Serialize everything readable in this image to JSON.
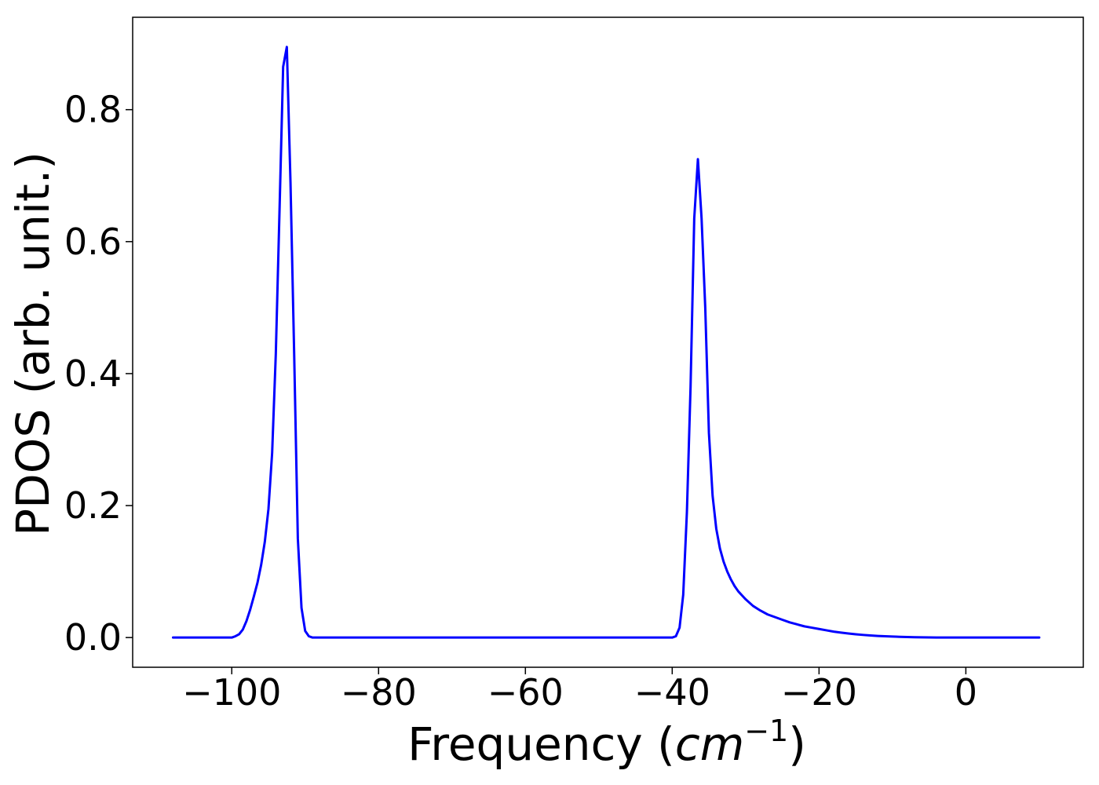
{
  "chart_data": {
    "type": "line",
    "title": "",
    "xlabel": "Frequency (",
    "xlabel_math": "cm",
    "xlabel_sup": "−1",
    "xlabel_close": ")",
    "ylabel": "PDOS (arb. unit.)",
    "xlim": [
      -113.5,
      16
    ],
    "ylim": [
      -0.045,
      0.94
    ],
    "xticks": [
      -100,
      -80,
      -60,
      -40,
      -20,
      0
    ],
    "xtick_labels": [
      "−100",
      "−80",
      "−60",
      "−40",
      "−20",
      "0"
    ],
    "yticks": [
      0.0,
      0.2,
      0.4,
      0.6,
      0.8
    ],
    "ytick_labels": [
      "0.0",
      "0.2",
      "0.4",
      "0.6",
      "0.8"
    ],
    "grid": false,
    "line_color": "#0000ff",
    "series": [
      {
        "x": [
          -108,
          -104,
          -101,
          -100,
          -99.5,
          -99,
          -98.5,
          -98,
          -97.5,
          -97,
          -96.5,
          -96,
          -95.5,
          -95,
          -94.5,
          -94,
          -93.5,
          -93,
          -92.5,
          -92,
          -91.5,
          -91,
          -90.5,
          -90,
          -89.5,
          -89,
          -88.5,
          -88,
          -87,
          -85,
          -80,
          -60,
          -42,
          -40,
          -39.5,
          -39,
          -38.5,
          -38,
          -37.5,
          -37,
          -36.5,
          -36,
          -35.5,
          -35,
          -34.5,
          -34,
          -33.5,
          -33,
          -32.5,
          -32,
          -31.5,
          -31,
          -30.5,
          -30,
          -29,
          -28,
          -27,
          -26,
          -25,
          -24,
          -23,
          -22,
          -21,
          -20,
          -19,
          -18,
          -17,
          -16,
          -15,
          -14,
          -13,
          -12,
          -11,
          -10,
          -9,
          -8,
          -7,
          -6,
          -5,
          -4,
          -3,
          -2,
          -1,
          0,
          2,
          5,
          10
        ],
        "y": [
          0.0,
          0.0,
          0.0,
          0.0,
          0.002,
          0.005,
          0.012,
          0.025,
          0.042,
          0.062,
          0.083,
          0.11,
          0.145,
          0.195,
          0.28,
          0.43,
          0.645,
          0.865,
          0.895,
          0.69,
          0.43,
          0.15,
          0.045,
          0.01,
          0.002,
          0.0,
          0.0,
          0.0,
          0.0,
          0.0,
          0.0,
          0.0,
          0.0,
          0.0,
          0.002,
          0.015,
          0.065,
          0.19,
          0.38,
          0.635,
          0.725,
          0.635,
          0.5,
          0.31,
          0.215,
          0.165,
          0.135,
          0.115,
          0.1,
          0.088,
          0.078,
          0.07,
          0.064,
          0.058,
          0.048,
          0.041,
          0.035,
          0.031,
          0.027,
          0.023,
          0.02,
          0.017,
          0.015,
          0.013,
          0.011,
          0.009,
          0.0075,
          0.0062,
          0.005,
          0.004,
          0.0032,
          0.0025,
          0.002,
          0.0015,
          0.0011,
          0.0008,
          0.0005,
          0.0003,
          0.0002,
          0.0001,
          0.0,
          0.0,
          0.0,
          0.0,
          0.0,
          0.0,
          0.0
        ]
      }
    ]
  }
}
